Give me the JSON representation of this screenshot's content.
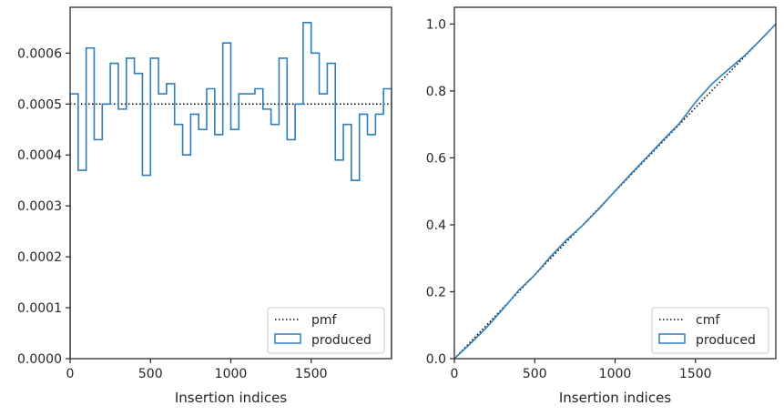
{
  "chart_data": [
    {
      "type": "step",
      "xlabel": "Insertion indices",
      "ylabel": "",
      "xlim": [
        0,
        2000
      ],
      "ylim": [
        0,
        0.00069
      ],
      "xticks": [
        0,
        500,
        1000,
        1500
      ],
      "xtick_labels": [
        "0",
        "500",
        "1000",
        "1500"
      ],
      "yticks": [
        0,
        0.0001,
        0.0002,
        0.0003,
        0.0004,
        0.0005,
        0.0006
      ],
      "ytick_labels": [
        "0.0000",
        "0.0001",
        "0.0002",
        "0.0003",
        "0.0004",
        "0.0005",
        "0.0006"
      ],
      "legend_position": "lower-right",
      "series": [
        {
          "name": "pmf",
          "style": "dotted",
          "color": "#000000",
          "x": [
            0,
            2000
          ],
          "values": [
            0.0005,
            0.0005
          ]
        },
        {
          "name": "produced",
          "style": "step-histogram",
          "color": "#2f7ebc",
          "bin_edges": [
            0,
            50,
            100,
            150,
            200,
            250,
            300,
            350,
            400,
            450,
            500,
            550,
            600,
            650,
            700,
            750,
            800,
            850,
            900,
            950,
            1000,
            1050,
            1100,
            1150,
            1200,
            1250,
            1300,
            1350,
            1400,
            1450,
            1500,
            1550,
            1600,
            1650,
            1700,
            1750,
            1800,
            1850,
            1900,
            1950,
            2000
          ],
          "values": [
            0.00052,
            0.00037,
            0.00061,
            0.00043,
            0.0005,
            0.00058,
            0.00049,
            0.00059,
            0.00056,
            0.00036,
            0.00059,
            0.00052,
            0.00054,
            0.00046,
            0.0004,
            0.00048,
            0.00045,
            0.00053,
            0.00044,
            0.00062,
            0.00045,
            0.00052,
            0.00052,
            0.00053,
            0.00049,
            0.00046,
            0.00059,
            0.00043,
            0.0005,
            0.00066,
            0.0006,
            0.00052,
            0.00058,
            0.00039,
            0.00046,
            0.00035,
            0.00048,
            0.00044,
            0.00048,
            0.00053
          ]
        }
      ]
    },
    {
      "type": "line",
      "xlabel": "Insertion indices",
      "ylabel": "",
      "xlim": [
        0,
        2000
      ],
      "ylim": [
        0,
        1.05
      ],
      "xticks": [
        0,
        500,
        1000,
        1500
      ],
      "xtick_labels": [
        "0",
        "500",
        "1000",
        "1500"
      ],
      "yticks": [
        0,
        0.2,
        0.4,
        0.6,
        0.8,
        1.0
      ],
      "ytick_labels": [
        "0.0",
        "0.2",
        "0.4",
        "0.6",
        "0.8",
        "1.0"
      ],
      "legend_position": "lower-right",
      "series": [
        {
          "name": "cmf",
          "style": "dotted",
          "color": "#000000",
          "x": [
            0,
            2000
          ],
          "values": [
            0,
            1.0
          ]
        },
        {
          "name": "produced",
          "style": "step-cumulative",
          "color": "#2f7ebc",
          "x": [
            0,
            100,
            200,
            300,
            400,
            500,
            600,
            700,
            800,
            900,
            1000,
            1100,
            1200,
            1300,
            1400,
            1500,
            1600,
            1700,
            1800,
            1900,
            2000
          ],
          "values": [
            0,
            0.045,
            0.093,
            0.147,
            0.204,
            0.25,
            0.306,
            0.356,
            0.399,
            0.448,
            0.501,
            0.553,
            0.603,
            0.654,
            0.703,
            0.766,
            0.82,
            0.862,
            0.903,
            0.95,
            1.0
          ]
        }
      ]
    }
  ]
}
